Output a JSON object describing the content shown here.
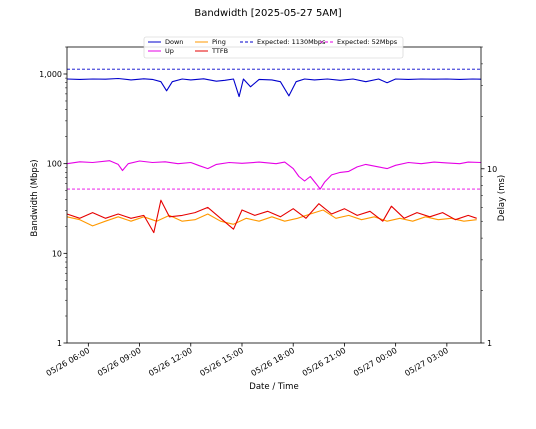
{
  "chart_data": {
    "type": "line",
    "title": "Bandwidth [2025-05-27 5AM]",
    "xlabel": "Date / Time",
    "ylabel": "Bandwidth (Mbps)",
    "y2label": "Delay (ms)",
    "y_scale": "log",
    "ylim": [
      1,
      2000
    ],
    "y_ticks": [
      1,
      10,
      100,
      1000
    ],
    "y_tick_labels": [
      "1",
      "10",
      "100",
      "1,000"
    ],
    "y2_scale": "log",
    "y2lim": [
      1,
      50
    ],
    "y2_ticks": [
      1,
      10
    ],
    "y2_tick_labels": [
      "1",
      "10"
    ],
    "xlim": [
      "2025-05-26 04:45",
      "2025-05-27 05:00"
    ],
    "x_ticks": [
      "2025-05-26 06:00",
      "2025-05-26 09:00",
      "2025-05-26 12:00",
      "2025-05-26 15:00",
      "2025-05-26 18:00",
      "2025-05-26 21:00",
      "2025-05-27 00:00",
      "2025-05-27 03:00"
    ],
    "x_tick_labels": [
      "05/26 06:00",
      "05/26 09:00",
      "05/26 12:00",
      "05/26 15:00",
      "05/26 18:00",
      "05/26 21:00",
      "05/27 00:00",
      "05/27 03:00"
    ],
    "grid": false,
    "legend_position": "top-center",
    "series": [
      {
        "name": "Down",
        "axis": "left",
        "color": "#0000cc",
        "style": "solid",
        "points": [
          [
            "2025-05-26 04:45",
            880
          ],
          [
            "2025-05-26 05:30",
            870
          ],
          [
            "2025-05-26 06:15",
            880
          ],
          [
            "2025-05-26 07:00",
            875
          ],
          [
            "2025-05-26 07:45",
            890
          ],
          [
            "2025-05-26 08:30",
            860
          ],
          [
            "2025-05-26 09:15",
            885
          ],
          [
            "2025-05-26 09:45",
            870
          ],
          [
            "2025-05-26 10:15",
            820
          ],
          [
            "2025-05-26 10:35",
            650
          ],
          [
            "2025-05-26 10:55",
            820
          ],
          [
            "2025-05-26 11:30",
            880
          ],
          [
            "2025-05-26 12:00",
            860
          ],
          [
            "2025-05-26 12:45",
            885
          ],
          [
            "2025-05-26 13:30",
            830
          ],
          [
            "2025-05-26 14:00",
            850
          ],
          [
            "2025-05-26 14:30",
            880
          ],
          [
            "2025-05-26 14:50",
            560
          ],
          [
            "2025-05-26 15:05",
            880
          ],
          [
            "2025-05-26 15:30",
            720
          ],
          [
            "2025-05-26 16:00",
            870
          ],
          [
            "2025-05-26 16:45",
            860
          ],
          [
            "2025-05-26 17:15",
            820
          ],
          [
            "2025-05-26 17:45",
            570
          ],
          [
            "2025-05-26 18:10",
            820
          ],
          [
            "2025-05-26 18:40",
            880
          ],
          [
            "2025-05-26 19:15",
            860
          ],
          [
            "2025-05-26 20:00",
            880
          ],
          [
            "2025-05-26 20:45",
            850
          ],
          [
            "2025-05-26 21:30",
            880
          ],
          [
            "2025-05-26 22:15",
            820
          ],
          [
            "2025-05-26 23:00",
            880
          ],
          [
            "2025-05-26 23:30",
            800
          ],
          [
            "2025-05-27 00:00",
            880
          ],
          [
            "2025-05-27 00:45",
            870
          ],
          [
            "2025-05-27 01:30",
            880
          ],
          [
            "2025-05-27 02:15",
            875
          ],
          [
            "2025-05-27 03:00",
            880
          ],
          [
            "2025-05-27 03:45",
            870
          ],
          [
            "2025-05-27 04:30",
            880
          ],
          [
            "2025-05-27 05:00",
            875
          ]
        ]
      },
      {
        "name": "Up",
        "axis": "left",
        "color": "#e600e6",
        "style": "solid",
        "points": [
          [
            "2025-05-26 04:45",
            100
          ],
          [
            "2025-05-26 05:30",
            105
          ],
          [
            "2025-05-26 06:15",
            103
          ],
          [
            "2025-05-26 07:15",
            108
          ],
          [
            "2025-05-26 07:45",
            98
          ],
          [
            "2025-05-26 08:00",
            84
          ],
          [
            "2025-05-26 08:20",
            100
          ],
          [
            "2025-05-26 09:00",
            107
          ],
          [
            "2025-05-26 09:45",
            103
          ],
          [
            "2025-05-26 10:30",
            105
          ],
          [
            "2025-05-26 11:15",
            100
          ],
          [
            "2025-05-26 12:00",
            103
          ],
          [
            "2025-05-26 12:30",
            95
          ],
          [
            "2025-05-26 13:00",
            88
          ],
          [
            "2025-05-26 13:30",
            98
          ],
          [
            "2025-05-26 14:15",
            103
          ],
          [
            "2025-05-26 15:00",
            101
          ],
          [
            "2025-05-26 16:00",
            104
          ],
          [
            "2025-05-26 17:00",
            100
          ],
          [
            "2025-05-26 17:30",
            104
          ],
          [
            "2025-05-26 18:00",
            88
          ],
          [
            "2025-05-26 18:20",
            72
          ],
          [
            "2025-05-26 18:40",
            64
          ],
          [
            "2025-05-26 19:00",
            72
          ],
          [
            "2025-05-26 19:20",
            60
          ],
          [
            "2025-05-26 19:35",
            52
          ],
          [
            "2025-05-26 19:50",
            62
          ],
          [
            "2025-05-26 20:15",
            75
          ],
          [
            "2025-05-26 20:45",
            80
          ],
          [
            "2025-05-26 21:15",
            82
          ],
          [
            "2025-05-26 21:45",
            92
          ],
          [
            "2025-05-26 22:15",
            98
          ],
          [
            "2025-05-26 23:00",
            92
          ],
          [
            "2025-05-26 23:30",
            88
          ],
          [
            "2025-05-27 00:00",
            96
          ],
          [
            "2025-05-27 00:45",
            103
          ],
          [
            "2025-05-27 01:30",
            100
          ],
          [
            "2025-05-27 02:15",
            104
          ],
          [
            "2025-05-27 03:00",
            102
          ],
          [
            "2025-05-27 03:45",
            100
          ],
          [
            "2025-05-27 04:15",
            104
          ],
          [
            "2025-05-27 05:00",
            103
          ]
        ]
      },
      {
        "name": "Ping",
        "axis": "right",
        "color": "#ff9900",
        "style": "solid",
        "points": [
          [
            "2025-05-26 04:45",
            5.3
          ],
          [
            "2025-05-26 05:30",
            5.1
          ],
          [
            "2025-05-26 06:15",
            4.7
          ],
          [
            "2025-05-26 07:00",
            5.0
          ],
          [
            "2025-05-26 07:45",
            5.3
          ],
          [
            "2025-05-26 08:30",
            5.0
          ],
          [
            "2025-05-26 09:15",
            5.3
          ],
          [
            "2025-05-26 10:00",
            5.0
          ],
          [
            "2025-05-26 10:45",
            5.4
          ],
          [
            "2025-05-26 11:30",
            5.0
          ],
          [
            "2025-05-26 12:15",
            5.1
          ],
          [
            "2025-05-26 13:00",
            5.5
          ],
          [
            "2025-05-26 13:45",
            5.0
          ],
          [
            "2025-05-26 14:30",
            4.8
          ],
          [
            "2025-05-26 15:15",
            5.2
          ],
          [
            "2025-05-26 16:00",
            5.0
          ],
          [
            "2025-05-26 16:45",
            5.3
          ],
          [
            "2025-05-26 17:30",
            5.0
          ],
          [
            "2025-05-26 18:15",
            5.2
          ],
          [
            "2025-05-26 19:00",
            5.5
          ],
          [
            "2025-05-26 19:45",
            5.8
          ],
          [
            "2025-05-26 20:30",
            5.2
          ],
          [
            "2025-05-26 21:15",
            5.4
          ],
          [
            "2025-05-26 22:00",
            5.1
          ],
          [
            "2025-05-26 22:45",
            5.3
          ],
          [
            "2025-05-26 23:30",
            5.0
          ],
          [
            "2025-05-27 00:15",
            5.2
          ],
          [
            "2025-05-27 01:00",
            5.0
          ],
          [
            "2025-05-27 01:45",
            5.3
          ],
          [
            "2025-05-27 02:30",
            5.1
          ],
          [
            "2025-05-27 03:15",
            5.2
          ],
          [
            "2025-05-27 04:00",
            5.0
          ],
          [
            "2025-05-27 04:45",
            5.1
          ]
        ]
      },
      {
        "name": "TTFB",
        "axis": "right",
        "color": "#e60000",
        "style": "solid",
        "points": [
          [
            "2025-05-26 04:45",
            5.5
          ],
          [
            "2025-05-26 05:30",
            5.2
          ],
          [
            "2025-05-26 06:15",
            5.6
          ],
          [
            "2025-05-26 07:00",
            5.2
          ],
          [
            "2025-05-26 07:45",
            5.5
          ],
          [
            "2025-05-26 08:30",
            5.2
          ],
          [
            "2025-05-26 09:15",
            5.4
          ],
          [
            "2025-05-26 09:50",
            4.3
          ],
          [
            "2025-05-26 10:15",
            6.6
          ],
          [
            "2025-05-26 10:45",
            5.3
          ],
          [
            "2025-05-26 11:30",
            5.4
          ],
          [
            "2025-05-26 12:15",
            5.6
          ],
          [
            "2025-05-26 13:00",
            6.0
          ],
          [
            "2025-05-26 13:45",
            5.2
          ],
          [
            "2025-05-26 14:30",
            4.5
          ],
          [
            "2025-05-26 15:00",
            5.8
          ],
          [
            "2025-05-26 15:45",
            5.4
          ],
          [
            "2025-05-26 16:30",
            5.7
          ],
          [
            "2025-05-26 17:15",
            5.3
          ],
          [
            "2025-05-26 18:00",
            5.9
          ],
          [
            "2025-05-26 18:45",
            5.2
          ],
          [
            "2025-05-26 19:30",
            6.3
          ],
          [
            "2025-05-26 20:15",
            5.5
          ],
          [
            "2025-05-26 21:00",
            5.9
          ],
          [
            "2025-05-26 21:45",
            5.4
          ],
          [
            "2025-05-26 22:30",
            5.7
          ],
          [
            "2025-05-26 23:15",
            5.0
          ],
          [
            "2025-05-26 23:45",
            6.1
          ],
          [
            "2025-05-27 00:30",
            5.2
          ],
          [
            "2025-05-27 01:15",
            5.6
          ],
          [
            "2025-05-27 02:00",
            5.3
          ],
          [
            "2025-05-27 02:45",
            5.6
          ],
          [
            "2025-05-27 03:30",
            5.1
          ],
          [
            "2025-05-27 04:15",
            5.4
          ],
          [
            "2025-05-27 04:45",
            5.2
          ]
        ]
      },
      {
        "name": "Expected: 1130Mbps",
        "axis": "left",
        "color": "#0000cc",
        "style": "dashed",
        "points": [
          [
            "2025-05-26 04:45",
            1130
          ],
          [
            "2025-05-27 05:00",
            1130
          ]
        ]
      },
      {
        "name": "Expected: 52Mbps",
        "axis": "left",
        "color": "#e600e6",
        "style": "dashed",
        "points": [
          [
            "2025-05-26 04:45",
            52
          ],
          [
            "2025-05-27 05:00",
            52
          ]
        ]
      }
    ]
  }
}
